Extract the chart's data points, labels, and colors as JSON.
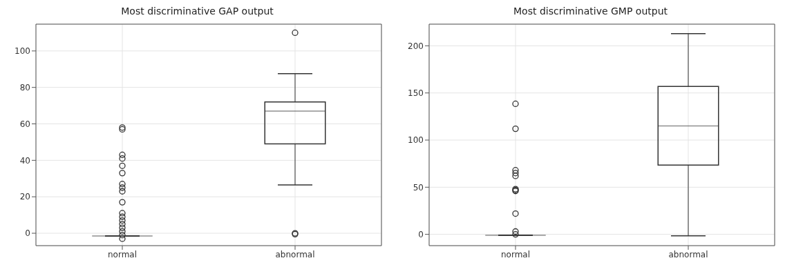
{
  "chart_data": [
    {
      "type": "box",
      "title": "Most discriminative GAP output",
      "categories": [
        "normal",
        "abnormal"
      ],
      "color": "#333333",
      "marker": "circle",
      "grid": true,
      "ylim": [
        -6.8,
        114.7
      ],
      "yticks": [
        0,
        20,
        40,
        60,
        80,
        100
      ],
      "boxes": [
        {
          "low": -1.5,
          "q1": -1.5,
          "median": -1.5,
          "q3": -1.5,
          "high": -1.5,
          "outliers": [
            58,
            57,
            43,
            41,
            37,
            33,
            27,
            25,
            23,
            17,
            11,
            9,
            7,
            5,
            3,
            1,
            -1,
            -3
          ]
        },
        {
          "low": 26.5,
          "q1": 49,
          "median": 67,
          "q3": 72,
          "high": 87.5,
          "outliers": [
            110,
            0,
            -0.5
          ]
        }
      ]
    },
    {
      "type": "box",
      "title": "Most discriminative GMP output",
      "categories": [
        "normal",
        "abnormal"
      ],
      "color": "#333333",
      "marker": "circle",
      "grid": true,
      "ylim": [
        -12,
        223
      ],
      "yticks": [
        0,
        50,
        100,
        150,
        200
      ],
      "boxes": [
        {
          "low": -1,
          "q1": -1,
          "median": -1,
          "q3": -1,
          "high": -1,
          "outliers": [
            138.5,
            112,
            68,
            65,
            62,
            48,
            47,
            46,
            22,
            3,
            0
          ]
        },
        {
          "low": -1.5,
          "q1": 73.5,
          "median": 115,
          "q3": 157,
          "high": 213
        }
      ]
    }
  ]
}
